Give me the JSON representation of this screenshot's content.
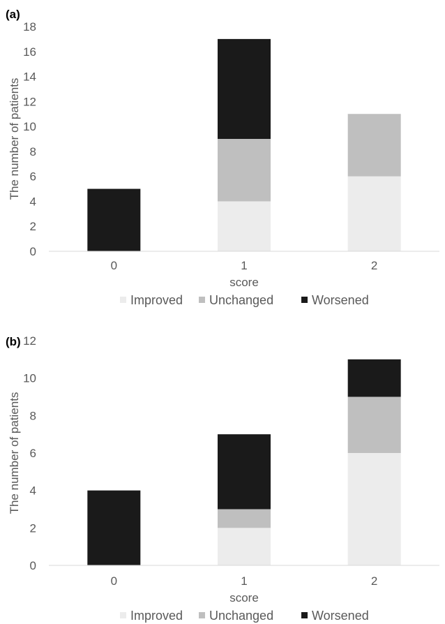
{
  "chart_data": [
    {
      "panel": "(a)",
      "type": "bar",
      "stacked": true,
      "categories": [
        "0",
        "1",
        "2"
      ],
      "series": [
        {
          "name": "Improved",
          "values": [
            0,
            4,
            6
          ],
          "color": "#ececec"
        },
        {
          "name": "Unchanged",
          "values": [
            0,
            5,
            5
          ],
          "color": "#bfbfbf"
        },
        {
          "name": "Worsened",
          "values": [
            5,
            8,
            0
          ],
          "color": "#1a1a1a"
        }
      ],
      "yticks": [
        "0",
        "2",
        "4",
        "6",
        "8",
        "10",
        "12",
        "14",
        "16",
        "18"
      ],
      "ylim": [
        0,
        18
      ],
      "xlabel": "score",
      "ylabel": "The number of patients",
      "legend_position": "bottom",
      "grid": false
    },
    {
      "panel": "(b)",
      "type": "bar",
      "stacked": true,
      "categories": [
        "0",
        "1",
        "2"
      ],
      "series": [
        {
          "name": "Improved",
          "values": [
            0,
            2,
            6
          ],
          "color": "#ececec"
        },
        {
          "name": "Unchanged",
          "values": [
            0,
            1,
            3
          ],
          "color": "#bfbfbf"
        },
        {
          "name": "Worsened",
          "values": [
            4,
            4,
            2
          ],
          "color": "#1a1a1a"
        }
      ],
      "yticks": [
        "0",
        "2",
        "4",
        "6",
        "8",
        "10",
        "12"
      ],
      "ylim": [
        0,
        12
      ],
      "xlabel": "score",
      "ylabel": "The number of patients",
      "legend_position": "bottom",
      "grid": false
    }
  ]
}
